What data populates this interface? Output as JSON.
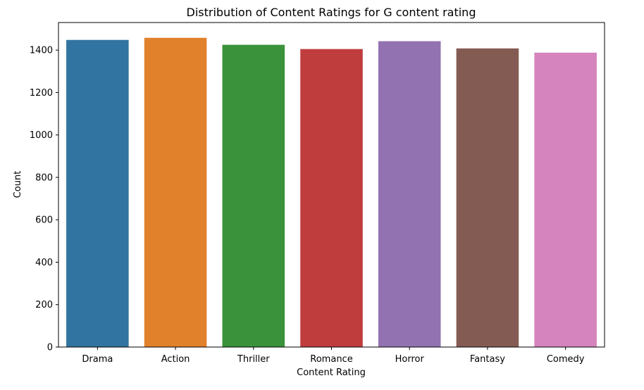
{
  "chart_data": {
    "type": "bar",
    "title": "Distribution of Content Ratings for G content rating",
    "xlabel": "Content Rating",
    "ylabel": "Count",
    "categories": [
      "Drama",
      "Action",
      "Thriller",
      "Romance",
      "Horror",
      "Fantasy",
      "Comedy"
    ],
    "values": [
      1448,
      1458,
      1425,
      1405,
      1442,
      1408,
      1388
    ],
    "colors": [
      "#3274a1",
      "#e1812c",
      "#3a923a",
      "#c03d3e",
      "#9372b2",
      "#845b53",
      "#d684bd"
    ],
    "ylim": [
      0,
      1530
    ],
    "yticks": [
      0,
      200,
      400,
      600,
      800,
      1000,
      1200,
      1400
    ],
    "grid": false,
    "legend": "none"
  }
}
